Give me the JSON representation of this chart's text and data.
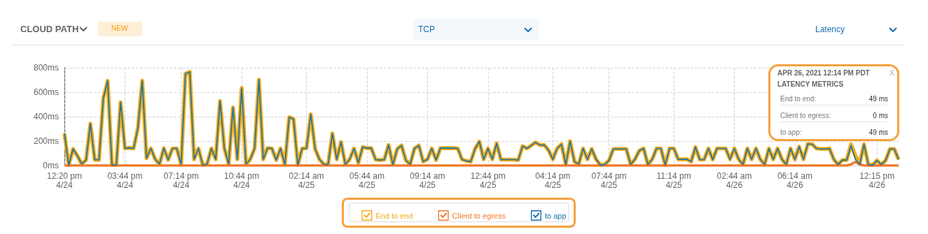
{
  "chart_data": {
    "type": "line",
    "title": "CLOUD PATH",
    "annotations": [
      "NEW",
      "TCP",
      "Latency",
      "APR 26, 2021 12:14 PM PDT",
      "LATENCY METRICS",
      "End to end:",
      "49 ms",
      "Client to egress:",
      "0 ms",
      "to app:",
      "49 ms",
      "X"
    ],
    "categories": [
      "12:20 pm\n4/24",
      null,
      null,
      null,
      null,
      null,
      null,
      null,
      null,
      null,
      null,
      null,
      null,
      null,
      "03:44 pm\n4/24",
      null,
      null,
      null,
      null,
      null,
      null,
      null,
      null,
      null,
      null,
      null,
      null,
      "07:14 pm\n4/24",
      null,
      null,
      null,
      null,
      null,
      null,
      null,
      null,
      null,
      null,
      null,
      null,
      null,
      "10:44 pm\n4/24",
      null,
      null,
      null,
      null,
      null,
      null,
      null,
      null,
      null,
      null,
      null,
      null,
      null,
      null,
      "02:14 am\n4/25",
      null,
      null,
      null,
      null,
      null,
      null,
      null,
      null,
      null,
      null,
      null,
      null,
      null,
      "05:44 am\n4/25",
      null,
      null,
      null,
      null,
      null,
      null,
      null,
      null,
      null,
      null,
      null,
      null,
      null,
      "09:14 am\n4/25",
      null,
      null,
      null,
      null,
      null,
      null,
      null,
      null,
      null,
      null,
      null,
      null,
      null,
      "12:44 pm\n4/25",
      null,
      null,
      null,
      null,
      null,
      null,
      null,
      null,
      null,
      null,
      null,
      null,
      null,
      null,
      "04:14 pm\n4/25",
      null,
      null,
      null,
      null,
      null,
      null,
      null,
      null,
      null,
      null,
      null,
      null,
      "07:44 pm\n4/25",
      null,
      null,
      null,
      null,
      null,
      null,
      null,
      null,
      null,
      null,
      null,
      null,
      null,
      null,
      "11:14 pm\n4/25",
      null,
      null,
      null,
      null,
      null,
      null,
      null,
      null,
      null,
      null,
      null,
      null,
      null,
      "02:44 am\n4/26",
      null,
      null,
      null,
      null,
      null,
      null,
      null,
      null,
      null,
      null,
      null,
      null,
      null,
      "06:14 am\n4/26",
      null,
      null,
      null,
      null,
      null,
      null,
      null,
      null,
      null,
      null,
      null,
      null,
      null,
      null,
      null,
      null,
      null,
      null,
      "12:15 pm\n4/26",
      null,
      null,
      null,
      null,
      null
    ],
    "series": [
      {
        "name": "End to end",
        "color": "#f2ac1c",
        "values": [
          262,
          4,
          136,
          79,
          13,
          45,
          343,
          47,
          47,
          551,
          693,
          4,
          4,
          517,
          140,
          145,
          140,
          306,
          694,
          60,
          140,
          51,
          13,
          142,
          47,
          140,
          140,
          8,
          751,
          766,
          51,
          140,
          4,
          11,
          140,
          51,
          528,
          140,
          11,
          476,
          51,
          634,
          11,
          51,
          140,
          702,
          51,
          143,
          140,
          45,
          140,
          8,
          396,
          381,
          4,
          140,
          140,
          419,
          136,
          51,
          11,
          8,
          262,
          51,
          192,
          8,
          51,
          140,
          23,
          151,
          142,
          142,
          49,
          45,
          49,
          168,
          8,
          136,
          164,
          42,
          11,
          140,
          164,
          32,
          51,
          140,
          45,
          143,
          142,
          142,
          142,
          140,
          49,
          38,
          32,
          136,
          196,
          51,
          140,
          51,
          181,
          49,
          49,
          49,
          49,
          45,
          159,
          140,
          164,
          189,
          168,
          168,
          126,
          51,
          140,
          174,
          8,
          200,
          32,
          11,
          140,
          51,
          136,
          51,
          4,
          8,
          42,
          136,
          136,
          136,
          136,
          8,
          51,
          121,
          140,
          8,
          51,
          140,
          140,
          4,
          140,
          140,
          51,
          51,
          51,
          32,
          151,
          49,
          49,
          140,
          49,
          140,
          140,
          140,
          51,
          140,
          51,
          8,
          140,
          51,
          140,
          51,
          8,
          140,
          51,
          140,
          51,
          8,
          140,
          51,
          155,
          51,
          177,
          174,
          140,
          136,
          136,
          140,
          51,
          8,
          45,
          45,
          174,
          81,
          18,
          174,
          8,
          4,
          42,
          8,
          42,
          136,
          136,
          49
        ]
      },
      {
        "name": "Client to egress",
        "color": "#f07a2a",
        "values": [
          0,
          0,
          0,
          0,
          0,
          0,
          0,
          0,
          0,
          0,
          0,
          0,
          0,
          0,
          0,
          0,
          0,
          0,
          0,
          0,
          0,
          0,
          0,
          0,
          0,
          0,
          0,
          0,
          0,
          0,
          0,
          0,
          0,
          0,
          0,
          0,
          0,
          0,
          0,
          0,
          0,
          0,
          0,
          0,
          0,
          0,
          0,
          0,
          0,
          0,
          0,
          0,
          0,
          0,
          0,
          0,
          0,
          0,
          0,
          0,
          0,
          0,
          0,
          0,
          0,
          0,
          0,
          0,
          0,
          0,
          0,
          0,
          0,
          0,
          0,
          0,
          0,
          0,
          0,
          0,
          0,
          0,
          0,
          0,
          0,
          0,
          0,
          0,
          0,
          0,
          0,
          0,
          0,
          0,
          0,
          0,
          0,
          0,
          0,
          0,
          0,
          0,
          0,
          0,
          0,
          0,
          0,
          0,
          0,
          0,
          0,
          0,
          0,
          0,
          0,
          0,
          0,
          0,
          0,
          0,
          0,
          0,
          0,
          0,
          0,
          0,
          0,
          0,
          0,
          0,
          0,
          0,
          0,
          0,
          0,
          0,
          0,
          0,
          0,
          0,
          0,
          0,
          0,
          0,
          0,
          0,
          0,
          0,
          0,
          0,
          0,
          0,
          0,
          0,
          0,
          0,
          0,
          0,
          0,
          0,
          0,
          0,
          0,
          0,
          0,
          0,
          0,
          0,
          0,
          0,
          0,
          0,
          0,
          0,
          0,
          0,
          0,
          0,
          0,
          0,
          0,
          0,
          10,
          30,
          10,
          0,
          0,
          0,
          0,
          0,
          0,
          0,
          0,
          0
        ]
      },
      {
        "name": "to app",
        "color": "#1372a8",
        "values": [
          262,
          4,
          136,
          79,
          13,
          45,
          343,
          47,
          47,
          551,
          693,
          4,
          4,
          517,
          140,
          145,
          140,
          306,
          694,
          60,
          140,
          51,
          13,
          142,
          47,
          140,
          140,
          8,
          751,
          766,
          51,
          140,
          4,
          11,
          140,
          51,
          528,
          140,
          11,
          476,
          51,
          634,
          11,
          51,
          140,
          702,
          51,
          143,
          140,
          45,
          140,
          8,
          396,
          381,
          4,
          140,
          140,
          419,
          136,
          51,
          11,
          8,
          262,
          51,
          192,
          8,
          51,
          140,
          23,
          151,
          142,
          142,
          49,
          45,
          49,
          168,
          8,
          136,
          164,
          42,
          11,
          140,
          164,
          32,
          51,
          140,
          45,
          143,
          142,
          142,
          142,
          140,
          49,
          38,
          32,
          136,
          196,
          51,
          140,
          51,
          181,
          49,
          49,
          49,
          49,
          45,
          159,
          140,
          164,
          189,
          168,
          168,
          126,
          51,
          140,
          174,
          8,
          200,
          32,
          11,
          140,
          51,
          136,
          51,
          4,
          8,
          42,
          136,
          136,
          136,
          136,
          8,
          51,
          121,
          140,
          8,
          51,
          140,
          140,
          4,
          140,
          140,
          51,
          51,
          51,
          32,
          151,
          49,
          49,
          140,
          49,
          140,
          140,
          140,
          51,
          140,
          51,
          8,
          140,
          51,
          140,
          51,
          8,
          140,
          51,
          140,
          51,
          8,
          140,
          51,
          155,
          51,
          177,
          174,
          140,
          136,
          136,
          140,
          51,
          8,
          45,
          45,
          164,
          51,
          8,
          174,
          8,
          4,
          42,
          8,
          42,
          136,
          136,
          49
        ]
      }
    ],
    "ylim": [
      0,
      800
    ],
    "yticks": [
      {
        "value": 0,
        "label": "0ms"
      },
      {
        "value": 200,
        "label": "200ms"
      },
      {
        "value": 400,
        "label": "400ms"
      },
      {
        "value": 600,
        "label": "600ms"
      },
      {
        "value": 800,
        "label": "800ms"
      }
    ],
    "grid": true,
    "legend": "bottom",
    "marker": "none",
    "line_style": "solid"
  }
}
